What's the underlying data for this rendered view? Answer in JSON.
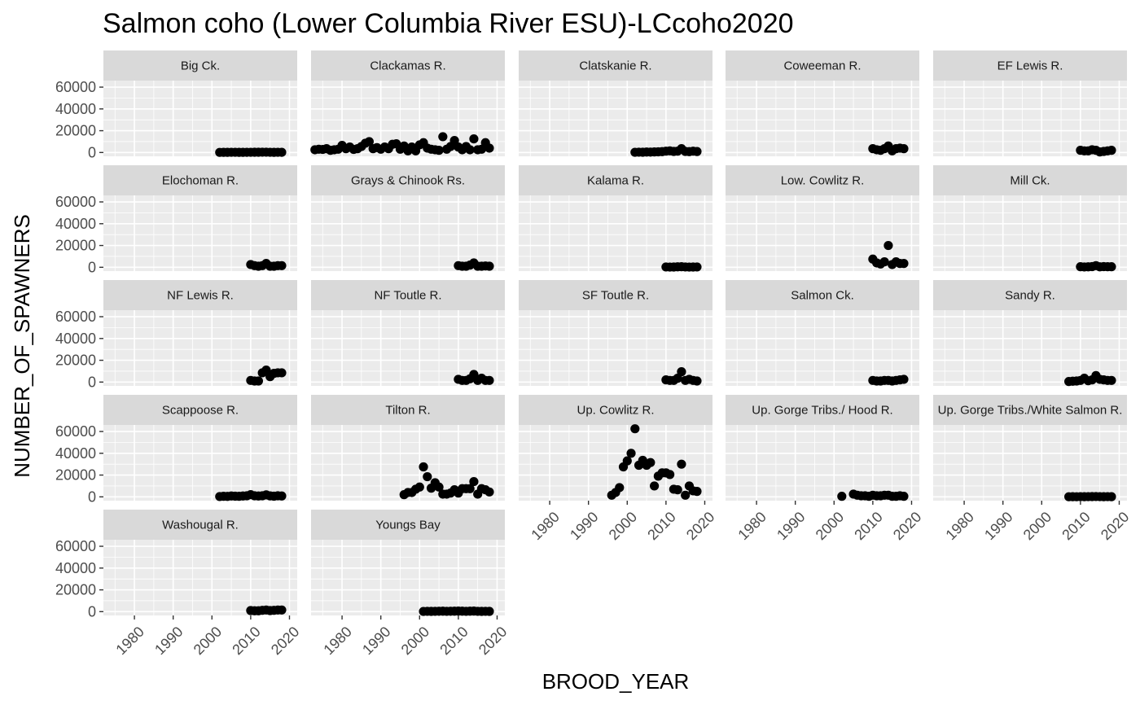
{
  "chart_data": {
    "type": "scatter",
    "title": "Salmon coho (Lower Columbia River ESU)-LCcoho2020",
    "xlabel": "BROOD_YEAR",
    "ylabel": "NUMBER_OF_SPAWNERS",
    "xlim": [
      1972,
      2022
    ],
    "ylim": [
      -3500,
      66000
    ],
    "x_ticks": [
      1980,
      1990,
      2000,
      2010,
      2020
    ],
    "y_ticks": [
      0,
      20000,
      40000,
      60000
    ],
    "grid": true,
    "facets": [
      {
        "name": "Big Ck.",
        "x": [
          2002,
          2003,
          2004,
          2005,
          2006,
          2007,
          2008,
          2009,
          2010,
          2011,
          2012,
          2013,
          2014,
          2015,
          2016,
          2017,
          2018
        ],
        "y": [
          100,
          150,
          120,
          200,
          180,
          150,
          130,
          160,
          200,
          250,
          220,
          300,
          280,
          200,
          150,
          180,
          160
        ]
      },
      {
        "name": "Clackamas R.",
        "x": [
          1973,
          1974,
          1975,
          1976,
          1977,
          1978,
          1979,
          1980,
          1981,
          1982,
          1983,
          1984,
          1985,
          1986,
          1987,
          1988,
          1989,
          1990,
          1991,
          1992,
          1993,
          1994,
          1995,
          1996,
          1997,
          1998,
          1999,
          2000,
          2001,
          2002,
          2003,
          2004,
          2005,
          2006,
          2007,
          2008,
          2009,
          2010,
          2011,
          2012,
          2013,
          2014,
          2015,
          2016,
          2017,
          2018
        ],
        "y": [
          2500,
          3000,
          2800,
          3500,
          2000,
          2500,
          3000,
          6500,
          3500,
          5000,
          2800,
          3500,
          5500,
          8500,
          10000,
          3500,
          4500,
          3000,
          5000,
          3500,
          7500,
          8000,
          3000,
          6000,
          1500,
          5000,
          1500,
          7000,
          9000,
          4000,
          3000,
          2500,
          2000,
          14500,
          3000,
          5500,
          11000,
          5000,
          2500,
          5500,
          2500,
          12500,
          2500,
          3000,
          9000,
          4000
        ]
      },
      {
        "name": "Clatskanie R.",
        "x": [
          2002,
          2003,
          2004,
          2005,
          2006,
          2007,
          2008,
          2009,
          2010,
          2011,
          2012,
          2013,
          2014,
          2015,
          2016,
          2017,
          2018
        ],
        "y": [
          200,
          300,
          250,
          400,
          350,
          500,
          600,
          800,
          1200,
          1500,
          1000,
          1200,
          3500,
          1000,
          800,
          1200,
          900
        ]
      },
      {
        "name": "Coweeman R.",
        "x": [
          2010,
          2011,
          2012,
          2013,
          2014,
          2015,
          2016,
          2017,
          2018
        ],
        "y": [
          3500,
          2500,
          2000,
          3500,
          6000,
          1500,
          3500,
          4000,
          3500
        ]
      },
      {
        "name": "EF Lewis R.",
        "x": [
          2010,
          2011,
          2012,
          2013,
          2014,
          2015,
          2016,
          2017,
          2018
        ],
        "y": [
          2000,
          1500,
          1500,
          2500,
          2000,
          500,
          1000,
          1500,
          2000
        ]
      },
      {
        "name": "Elochoman R.",
        "x": [
          2010,
          2011,
          2012,
          2013,
          2014,
          2015,
          2016,
          2017,
          2018
        ],
        "y": [
          2500,
          1500,
          1000,
          1500,
          3500,
          1000,
          1000,
          1500,
          1500
        ]
      },
      {
        "name": "Grays & Chinook Rs.",
        "x": [
          2010,
          2011,
          2012,
          2013,
          2014,
          2015,
          2016,
          2017,
          2018
        ],
        "y": [
          1500,
          1000,
          1000,
          2000,
          4000,
          1000,
          1000,
          1200,
          1000
        ]
      },
      {
        "name": "Kalama R.",
        "x": [
          2010,
          2011,
          2012,
          2013,
          2014,
          2015,
          2016,
          2017,
          2018
        ],
        "y": [
          300,
          200,
          250,
          400,
          500,
          300,
          200,
          250,
          300
        ]
      },
      {
        "name": "Low. Cowlitz R.",
        "x": [
          2010,
          2011,
          2012,
          2013,
          2014,
          2015,
          2016,
          2017,
          2018
        ],
        "y": [
          7500,
          4000,
          3000,
          5000,
          20000,
          2500,
          5000,
          3500,
          3500
        ]
      },
      {
        "name": "Mill Ck.",
        "x": [
          2010,
          2011,
          2012,
          2013,
          2014,
          2015,
          2016,
          2017,
          2018
        ],
        "y": [
          500,
          300,
          400,
          600,
          1500,
          400,
          600,
          500,
          500
        ]
      },
      {
        "name": "NF Lewis R.",
        "x": [
          2010,
          2011,
          2012,
          2013,
          2014,
          2015,
          2016,
          2017,
          2018
        ],
        "y": [
          1500,
          1000,
          1000,
          8500,
          11000,
          5000,
          8000,
          8500,
          8500
        ]
      },
      {
        "name": "NF Toutle R.",
        "x": [
          2010,
          2011,
          2012,
          2013,
          2014,
          2015,
          2016,
          2017,
          2018
        ],
        "y": [
          2500,
          1500,
          1500,
          3000,
          7000,
          1500,
          3500,
          1500,
          1500
        ]
      },
      {
        "name": "SF Toutle R.",
        "x": [
          2010,
          2011,
          2012,
          2013,
          2014,
          2015,
          2016,
          2017,
          2018
        ],
        "y": [
          2000,
          1500,
          1500,
          3500,
          9500,
          1500,
          2500,
          1500,
          1000
        ]
      },
      {
        "name": "Salmon Ck.",
        "x": [
          2010,
          2011,
          2012,
          2013,
          2014,
          2015,
          2016,
          2017,
          2018
        ],
        "y": [
          1500,
          1000,
          1000,
          1500,
          1500,
          1000,
          1500,
          2000,
          2500
        ]
      },
      {
        "name": "Sandy R.",
        "x": [
          2007,
          2008,
          2009,
          2010,
          2011,
          2012,
          2013,
          2014,
          2015,
          2016,
          2017,
          2018
        ],
        "y": [
          500,
          800,
          1000,
          1500,
          3500,
          1200,
          2000,
          6000,
          2500,
          2000,
          1500,
          1500
        ]
      },
      {
        "name": "Scappoose R.",
        "x": [
          2002,
          2003,
          2004,
          2005,
          2006,
          2007,
          2008,
          2009,
          2010,
          2011,
          2012,
          2013,
          2014,
          2015,
          2016,
          2017,
          2018
        ],
        "y": [
          300,
          500,
          400,
          800,
          600,
          500,
          800,
          1000,
          2000,
          1000,
          800,
          1000,
          1800,
          900,
          600,
          1000,
          800
        ]
      },
      {
        "name": "Tilton R.",
        "x": [
          1996,
          1997,
          1998,
          1999,
          2000,
          2001,
          2002,
          2003,
          2004,
          2005,
          2006,
          2007,
          2008,
          2009,
          2010,
          2011,
          2012,
          2013,
          2014,
          2015,
          2016,
          2017,
          2018
        ],
        "y": [
          2000,
          4000,
          4000,
          7000,
          9000,
          27500,
          18500,
          8000,
          13000,
          9000,
          2500,
          2500,
          3500,
          6500,
          3500,
          7500,
          7500,
          7500,
          14000,
          2500,
          7500,
          6500,
          4500
        ]
      },
      {
        "name": "Up. Cowlitz R.",
        "x": [
          1996,
          1997,
          1998,
          1999,
          2000,
          2001,
          2002,
          2003,
          2004,
          2005,
          2006,
          2007,
          2008,
          2009,
          2010,
          2011,
          2012,
          2013,
          2014,
          2015,
          2016,
          2017,
          2018
        ],
        "y": [
          1500,
          4000,
          8500,
          27500,
          33000,
          40000,
          62500,
          29000,
          33500,
          29000,
          31500,
          10000,
          19000,
          22000,
          22000,
          20500,
          7000,
          6500,
          30000,
          1500,
          10000,
          5500,
          5000
        ]
      },
      {
        "name": "Up. Gorge Tribs./ Hood R.",
        "x": [
          2002,
          2005,
          2006,
          2007,
          2008,
          2009,
          2010,
          2011,
          2012,
          2013,
          2014,
          2015,
          2016,
          2017,
          2018
        ],
        "y": [
          500,
          2500,
          1500,
          1000,
          1000,
          500,
          1500,
          1000,
          1000,
          1500,
          1500,
          500,
          500,
          1000,
          500
        ]
      },
      {
        "name": "Up. Gorge Tribs./White Salmon R.",
        "x": [
          2007,
          2008,
          2009,
          2010,
          2011,
          2012,
          2013,
          2014,
          2015,
          2016,
          2017,
          2018
        ],
        "y": [
          100,
          150,
          100,
          200,
          150,
          200,
          250,
          300,
          200,
          150,
          200,
          150
        ]
      },
      {
        "name": "Washougal R.",
        "x": [
          2010,
          2011,
          2012,
          2013,
          2014,
          2015,
          2016,
          2017,
          2018
        ],
        "y": [
          1000,
          800,
          800,
          1200,
          1500,
          1000,
          1200,
          1500,
          1500
        ]
      },
      {
        "name": "Youngs Bay",
        "x": [
          2001,
          2002,
          2003,
          2004,
          2005,
          2006,
          2007,
          2008,
          2009,
          2010,
          2011,
          2012,
          2013,
          2014,
          2015,
          2016,
          2017,
          2018
        ],
        "y": [
          200,
          300,
          250,
          300,
          350,
          400,
          300,
          350,
          400,
          500,
          400,
          300,
          400,
          500,
          300,
          250,
          300,
          250
        ]
      }
    ]
  }
}
